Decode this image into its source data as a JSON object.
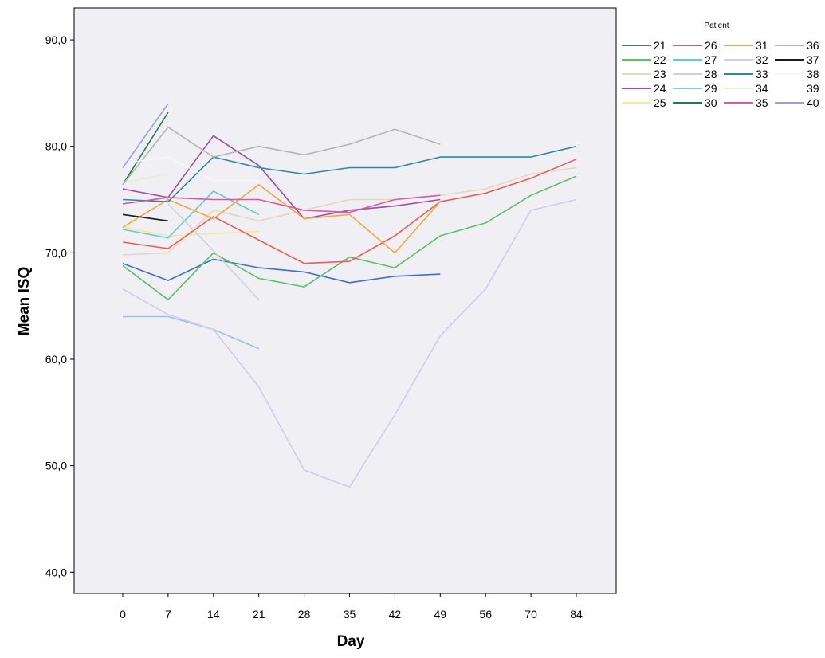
{
  "chart_data": {
    "type": "line",
    "xlabel": "Day",
    "ylabel": "Mean ISQ",
    "ylim": [
      38,
      93
    ],
    "y_ticks": [
      40,
      50,
      60,
      70,
      80,
      90
    ],
    "y_tick_labels": [
      "40,0",
      "50,0",
      "60,0",
      "70,0",
      "80,0",
      "90,0"
    ],
    "x_categories": [
      "0",
      "7",
      "14",
      "21",
      "28",
      "35",
      "42",
      "49",
      "56",
      "70",
      "84"
    ],
    "grid": false,
    "legend_position": "right",
    "legend_title": "Patient",
    "plot_background": "#f0f0f4",
    "series": [
      {
        "name": "21",
        "color": "#3d6fcc",
        "values": [
          69.0,
          67.4,
          69.4,
          68.6,
          68.2,
          67.2,
          67.8,
          68.0,
          null,
          null,
          null
        ]
      },
      {
        "name": "22",
        "color": "#5cbf62",
        "values": [
          68.8,
          65.6,
          70.0,
          67.6,
          66.8,
          69.6,
          68.6,
          71.6,
          72.8,
          75.4,
          77.2
        ]
      },
      {
        "name": "23",
        "color": "#e3d7c0",
        "values": [
          69.8,
          70.0,
          74.0,
          73.0,
          74.0,
          75.0,
          75.0,
          75.4,
          76.0,
          77.4,
          78.0
        ]
      },
      {
        "name": "24",
        "color": "#9a4ea8",
        "values": [
          76.0,
          75.2,
          81.0,
          78.2,
          73.2,
          74.0,
          74.4,
          75.0,
          null,
          null,
          null
        ]
      },
      {
        "name": "25",
        "color": "#f7e890",
        "values": [
          72.4,
          71.6,
          null,
          72.0,
          null,
          null,
          null,
          null,
          null,
          null,
          null
        ]
      },
      {
        "name": "26",
        "color": "#ef5b50",
        "values": [
          71.0,
          70.4,
          73.4,
          71.2,
          69.0,
          69.2,
          71.6,
          74.8,
          75.6,
          77.0,
          78.8
        ]
      },
      {
        "name": "27",
        "color": "#63c8dc",
        "values": [
          72.2,
          71.4,
          75.8,
          73.6,
          null,
          null,
          null,
          null,
          null,
          null,
          null
        ]
      },
      {
        "name": "28",
        "color": "#d2d2d2",
        "values": [
          null,
          74.6,
          70.2,
          65.6,
          null,
          null,
          null,
          null,
          null,
          null,
          null
        ]
      },
      {
        "name": "29",
        "color": "#9bc1e8",
        "values": [
          64.0,
          64.0,
          62.8,
          61.0,
          null,
          null,
          null,
          null,
          null,
          null,
          null
        ]
      },
      {
        "name": "30",
        "color": "#1f7a4c",
        "values": [
          76.4,
          83.2,
          null,
          null,
          null,
          null,
          null,
          null,
          null,
          null,
          null
        ]
      },
      {
        "name": "31",
        "color": "#f6a53c",
        "values": [
          72.4,
          75.0,
          73.2,
          76.4,
          73.2,
          73.6,
          70.0,
          74.8,
          null,
          null,
          null
        ]
      },
      {
        "name": "32",
        "color": "#cfcde8",
        "values": [
          66.6,
          64.2,
          62.8,
          57.4,
          49.6,
          48.0,
          54.8,
          62.2,
          66.6,
          74.0,
          75.0
        ]
      },
      {
        "name": "33",
        "color": "#2b87a6",
        "values": [
          75.0,
          74.8,
          79.0,
          78.0,
          77.4,
          78.0,
          78.0,
          79.0,
          79.0,
          79.0,
          80.0
        ]
      },
      {
        "name": "34",
        "color": "#e0f0d8",
        "values": [
          76.6,
          77.4,
          null,
          null,
          null,
          null,
          null,
          null,
          null,
          null,
          null
        ]
      },
      {
        "name": "35",
        "color": "#d85a9e",
        "values": [
          74.6,
          75.2,
          75.0,
          75.0,
          74.0,
          73.8,
          75.0,
          75.4,
          null,
          null,
          null
        ]
      },
      {
        "name": "36",
        "color": "#b4b4b4",
        "values": [
          76.4,
          81.8,
          79.0,
          80.0,
          79.2,
          80.2,
          81.6,
          80.2,
          null,
          null,
          null
        ]
      },
      {
        "name": "37",
        "color": "#1a1a1a",
        "values": [
          73.6,
          73.0,
          null,
          null,
          null,
          null,
          null,
          null,
          null,
          null,
          null
        ]
      },
      {
        "name": "38",
        "color": "#f6f6fa",
        "values": [
          78.4,
          79.0,
          76.8,
          76.8,
          null,
          null,
          null,
          null,
          null,
          null,
          null
        ]
      },
      {
        "name": "39",
        "color": "#ffffff",
        "values": [
          null,
          null,
          null,
          null,
          null,
          null,
          null,
          null,
          null,
          null,
          null
        ]
      },
      {
        "name": "40",
        "color": "#9aa0d8",
        "values": [
          78.0,
          84.0,
          null,
          null,
          null,
          null,
          null,
          null,
          null,
          null,
          null
        ]
      }
    ]
  }
}
